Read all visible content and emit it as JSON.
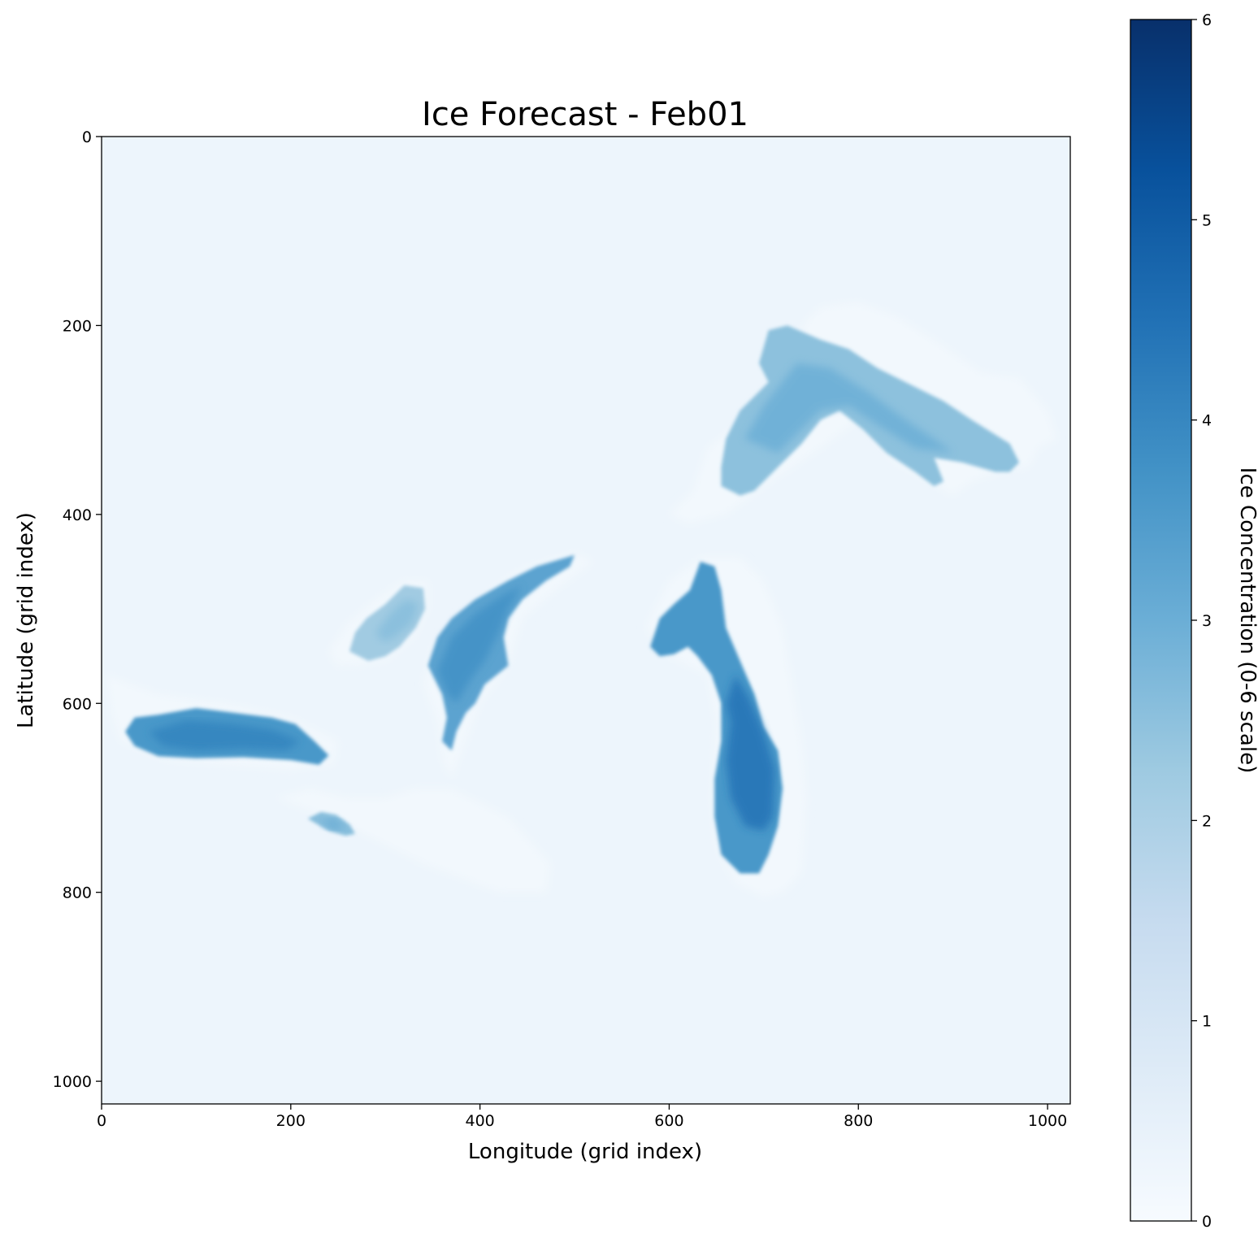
{
  "chart_data": {
    "type": "heatmap",
    "title": "Ice Forecast - Feb01",
    "xlabel": "Longitude (grid index)",
    "ylabel": "Latitude (grid index)",
    "xlim": [
      0,
      1024
    ],
    "ylim": [
      1024,
      0
    ],
    "x_ticks": [
      0,
      200,
      400,
      600,
      800,
      1000
    ],
    "y_ticks": [
      0,
      200,
      400,
      600,
      800,
      1000
    ],
    "grid": false,
    "background_value": 0.3,
    "colormap": "Blues",
    "colormap_stops": [
      "#f7fbff",
      "#deebf7",
      "#c6dbef",
      "#9ecae1",
      "#6baed6",
      "#4292c6",
      "#2171b5",
      "#08519c",
      "#08306b"
    ],
    "colorbar": {
      "label": "Ice Concentration (0-6 scale)",
      "range": [
        0,
        6
      ],
      "ticks": [
        0,
        1,
        2,
        3,
        4,
        5,
        6
      ],
      "placement": "right"
    },
    "regions": [
      {
        "name": "north-upper-lake",
        "halo_value": 0.15,
        "halo": [
          [
            625,
            375
          ],
          [
            640,
            330
          ],
          [
            680,
            300
          ],
          [
            710,
            265
          ],
          [
            745,
            195
          ],
          [
            760,
            180
          ],
          [
            800,
            175
          ],
          [
            840,
            190
          ],
          [
            880,
            215
          ],
          [
            930,
            250
          ],
          [
            970,
            255
          ],
          [
            1000,
            290
          ],
          [
            1010,
            320
          ],
          [
            990,
            330
          ],
          [
            980,
            350
          ],
          [
            950,
            355
          ],
          [
            920,
            365
          ],
          [
            900,
            380
          ],
          [
            840,
            345
          ],
          [
            800,
            300
          ],
          [
            760,
            330
          ],
          [
            700,
            370
          ],
          [
            660,
            400
          ],
          [
            620,
            410
          ],
          [
            600,
            400
          ]
        ],
        "body_value": 2.5,
        "body": [
          [
            655,
            350
          ],
          [
            660,
            320
          ],
          [
            675,
            290
          ],
          [
            690,
            275
          ],
          [
            705,
            260
          ],
          [
            695,
            240
          ],
          [
            705,
            205
          ],
          [
            725,
            200
          ],
          [
            760,
            215
          ],
          [
            790,
            225
          ],
          [
            820,
            245
          ],
          [
            860,
            265
          ],
          [
            890,
            280
          ],
          [
            920,
            300
          ],
          [
            960,
            325
          ],
          [
            970,
            345
          ],
          [
            960,
            355
          ],
          [
            945,
            355
          ],
          [
            910,
            345
          ],
          [
            880,
            340
          ],
          [
            890,
            365
          ],
          [
            880,
            370
          ],
          [
            860,
            355
          ],
          [
            830,
            335
          ],
          [
            805,
            310
          ],
          [
            780,
            290
          ],
          [
            760,
            300
          ],
          [
            740,
            325
          ],
          [
            720,
            345
          ],
          [
            690,
            375
          ],
          [
            675,
            380
          ],
          [
            655,
            370
          ]
        ],
        "core_value": 3.0,
        "core": [
          [
            680,
            320
          ],
          [
            700,
            285
          ],
          [
            735,
            240
          ],
          [
            770,
            245
          ],
          [
            810,
            270
          ],
          [
            850,
            300
          ],
          [
            880,
            320
          ],
          [
            900,
            335
          ],
          [
            860,
            330
          ],
          [
            820,
            305
          ],
          [
            790,
            285
          ],
          [
            760,
            290
          ],
          [
            740,
            310
          ],
          [
            715,
            335
          ]
        ]
      },
      {
        "name": "middle-west-small-lake",
        "halo_value": 0.15,
        "halo": [
          [
            240,
            545
          ],
          [
            260,
            515
          ],
          [
            290,
            490
          ],
          [
            320,
            470
          ],
          [
            345,
            470
          ],
          [
            345,
            500
          ],
          [
            330,
            530
          ],
          [
            300,
            555
          ],
          [
            270,
            560
          ],
          [
            248,
            560
          ]
        ],
        "body_value": 2.2,
        "body": [
          [
            262,
            545
          ],
          [
            268,
            525
          ],
          [
            280,
            510
          ],
          [
            300,
            495
          ],
          [
            320,
            475
          ],
          [
            340,
            478
          ],
          [
            342,
            500
          ],
          [
            332,
            520
          ],
          [
            315,
            540
          ],
          [
            300,
            550
          ],
          [
            282,
            555
          ]
        ],
        "core_value": 2.6,
        "core": [
          [
            290,
            525
          ],
          [
            305,
            505
          ],
          [
            322,
            490
          ],
          [
            335,
            495
          ],
          [
            328,
            515
          ],
          [
            310,
            530
          ],
          [
            298,
            535
          ]
        ]
      },
      {
        "name": "middle-northwest-lake",
        "halo_value": 0.15,
        "halo": [
          [
            340,
            580
          ],
          [
            350,
            540
          ],
          [
            385,
            500
          ],
          [
            440,
            460
          ],
          [
            500,
            440
          ],
          [
            520,
            450
          ],
          [
            480,
            480
          ],
          [
            445,
            510
          ],
          [
            430,
            560
          ],
          [
            400,
            600
          ],
          [
            385,
            640
          ],
          [
            370,
            680
          ],
          [
            360,
            660
          ],
          [
            355,
            620
          ]
        ],
        "body_value": 3.3,
        "body": [
          [
            345,
            560
          ],
          [
            355,
            530
          ],
          [
            370,
            510
          ],
          [
            395,
            490
          ],
          [
            430,
            470
          ],
          [
            460,
            455
          ],
          [
            500,
            443
          ],
          [
            495,
            455
          ],
          [
            470,
            470
          ],
          [
            445,
            490
          ],
          [
            430,
            510
          ],
          [
            425,
            530
          ],
          [
            430,
            560
          ],
          [
            405,
            580
          ],
          [
            395,
            600
          ],
          [
            385,
            610
          ],
          [
            375,
            630
          ],
          [
            370,
            650
          ],
          [
            360,
            640
          ],
          [
            365,
            615
          ],
          [
            360,
            590
          ]
        ],
        "core_value": 3.8,
        "core": [
          [
            355,
            565
          ],
          [
            370,
            530
          ],
          [
            395,
            505
          ],
          [
            425,
            485
          ],
          [
            445,
            475
          ],
          [
            430,
            500
          ],
          [
            420,
            525
          ],
          [
            405,
            555
          ],
          [
            390,
            575
          ],
          [
            375,
            600
          ],
          [
            365,
            590
          ]
        ]
      },
      {
        "name": "center-long-lake",
        "halo_value": 0.15,
        "halo": [
          [
            575,
            520
          ],
          [
            600,
            470
          ],
          [
            635,
            445
          ],
          [
            675,
            445
          ],
          [
            700,
            470
          ],
          [
            720,
            520
          ],
          [
            730,
            580
          ],
          [
            740,
            640
          ],
          [
            745,
            700
          ],
          [
            740,
            780
          ],
          [
            720,
            800
          ],
          [
            700,
            805
          ],
          [
            670,
            790
          ],
          [
            650,
            750
          ],
          [
            645,
            700
          ],
          [
            650,
            620
          ],
          [
            640,
            570
          ],
          [
            620,
            560
          ],
          [
            600,
            550
          ]
        ],
        "body_value": 3.6,
        "body": [
          [
            580,
            540
          ],
          [
            590,
            510
          ],
          [
            605,
            495
          ],
          [
            622,
            480
          ],
          [
            633,
            450
          ],
          [
            648,
            455
          ],
          [
            655,
            480
          ],
          [
            660,
            520
          ],
          [
            675,
            555
          ],
          [
            690,
            590
          ],
          [
            700,
            625
          ],
          [
            715,
            650
          ],
          [
            720,
            690
          ],
          [
            715,
            730
          ],
          [
            705,
            760
          ],
          [
            695,
            780
          ],
          [
            675,
            780
          ],
          [
            655,
            760
          ],
          [
            648,
            720
          ],
          [
            648,
            680
          ],
          [
            655,
            640
          ],
          [
            655,
            600
          ],
          [
            645,
            570
          ],
          [
            630,
            550
          ],
          [
            620,
            540
          ],
          [
            605,
            548
          ],
          [
            590,
            550
          ]
        ],
        "core_value": 4.5,
        "core": [
          [
            660,
            600
          ],
          [
            670,
            570
          ],
          [
            685,
            595
          ],
          [
            700,
            630
          ],
          [
            712,
            670
          ],
          [
            710,
            720
          ],
          [
            700,
            735
          ],
          [
            680,
            730
          ],
          [
            665,
            700
          ],
          [
            660,
            660
          ],
          [
            665,
            620
          ]
        ]
      },
      {
        "name": "southwest-lake",
        "halo_value": 0.15,
        "halo": [
          [
            5,
            570
          ],
          [
            60,
            590
          ],
          [
            130,
            600
          ],
          [
            200,
            615
          ],
          [
            250,
            640
          ],
          [
            245,
            665
          ],
          [
            200,
            670
          ],
          [
            130,
            665
          ],
          [
            70,
            660
          ],
          [
            20,
            640
          ],
          [
            10,
            610
          ]
        ],
        "body_value": 3.6,
        "body": [
          [
            25,
            630
          ],
          [
            35,
            615
          ],
          [
            60,
            612
          ],
          [
            100,
            605
          ],
          [
            140,
            610
          ],
          [
            180,
            615
          ],
          [
            205,
            622
          ],
          [
            225,
            640
          ],
          [
            240,
            655
          ],
          [
            230,
            665
          ],
          [
            200,
            660
          ],
          [
            150,
            657
          ],
          [
            100,
            658
          ],
          [
            60,
            656
          ],
          [
            35,
            645
          ]
        ],
        "core_value": 4.1,
        "core": [
          [
            50,
            630
          ],
          [
            90,
            618
          ],
          [
            140,
            622
          ],
          [
            180,
            628
          ],
          [
            210,
            640
          ],
          [
            195,
            650
          ],
          [
            150,
            648
          ],
          [
            100,
            650
          ],
          [
            65,
            645
          ]
        ]
      },
      {
        "name": "south-small-lake",
        "halo_value": 0.15,
        "halo": [
          [
            185,
            700
          ],
          [
            260,
            730
          ],
          [
            340,
            770
          ],
          [
            420,
            800
          ],
          [
            470,
            800
          ],
          [
            475,
            770
          ],
          [
            430,
            720
          ],
          [
            400,
            705
          ],
          [
            370,
            690
          ],
          [
            330,
            690
          ],
          [
            300,
            700
          ],
          [
            260,
            700
          ],
          [
            220,
            690
          ]
        ],
        "body_value": 2.6,
        "body": [
          [
            218,
            722
          ],
          [
            232,
            715
          ],
          [
            248,
            718
          ],
          [
            262,
            728
          ],
          [
            268,
            738
          ],
          [
            258,
            740
          ],
          [
            240,
            735
          ]
        ],
        "core_value": 3.1,
        "core": [
          [
            232,
            726
          ],
          [
            245,
            722
          ],
          [
            256,
            731
          ],
          [
            248,
            734
          ]
        ]
      }
    ]
  }
}
